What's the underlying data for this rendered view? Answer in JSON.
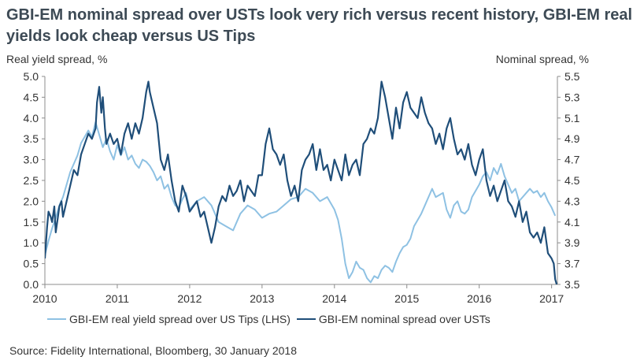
{
  "title": "GBI-EM nominal spread over USTs look very rich versus recent history, GBI-EM real yields look cheap versus US Tips",
  "source": "Source: Fidelity International, Bloomberg, 30 January 2018",
  "chart_data": {
    "type": "line",
    "title": "GBI-EM nominal spread over USTs look very rich versus recent history, GBI-EM real yields look cheap versus US Tips",
    "ylabel_left": "Real yield spread, %",
    "ylabel_right": "Nominal spread, %",
    "x_ticks": [
      "2010",
      "2011",
      "2012",
      "2013",
      "2014",
      "2015",
      "2016",
      "2017"
    ],
    "xlim": [
      2010.0,
      2017.08
    ],
    "ylim_left": [
      0.0,
      5.0
    ],
    "ylim_right": [
      3.5,
      5.5
    ],
    "y_ticks_left": [
      "0.0",
      "0.5",
      "1.0",
      "1.5",
      "2.0",
      "2.5",
      "3.0",
      "3.5",
      "4.0",
      "4.5",
      "5.0"
    ],
    "y_ticks_right": [
      "3.5",
      "3.7",
      "3.9",
      "4.1",
      "4.3",
      "4.5",
      "4.7",
      "4.9",
      "5.1",
      "5.3",
      "5.5"
    ],
    "legend_position": "bottom",
    "grid": false,
    "series": [
      {
        "name": "GBI-EM real yield spread over US Tips (LHS)",
        "axis": "left",
        "color": "#8ec1e3",
        "x": [
          2010.0,
          2010.05,
          2010.1,
          2010.15,
          2010.2,
          2010.25,
          2010.3,
          2010.35,
          2010.4,
          2010.45,
          2010.5,
          2010.55,
          2010.6,
          2010.65,
          2010.7,
          2010.75,
          2010.8,
          2010.85,
          2010.9,
          2010.95,
          2011.0,
          2011.05,
          2011.1,
          2011.15,
          2011.2,
          2011.25,
          2011.3,
          2011.35,
          2011.4,
          2011.45,
          2011.5,
          2011.55,
          2011.6,
          2011.65,
          2011.7,
          2011.75,
          2011.8,
          2011.85,
          2011.9,
          2011.95,
          2012.0,
          2012.1,
          2012.2,
          2012.3,
          2012.4,
          2012.5,
          2012.6,
          2012.7,
          2012.8,
          2012.9,
          2013.0,
          2013.1,
          2013.2,
          2013.3,
          2013.4,
          2013.5,
          2013.6,
          2013.7,
          2013.8,
          2013.9,
          2014.0,
          2014.05,
          2014.1,
          2014.15,
          2014.2,
          2014.25,
          2014.3,
          2014.35,
          2014.4,
          2014.45,
          2014.5,
          2014.55,
          2014.6,
          2014.65,
          2014.7,
          2014.75,
          2014.8,
          2014.85,
          2014.9,
          2014.95,
          2015.0,
          2015.05,
          2015.1,
          2015.15,
          2015.2,
          2015.25,
          2015.3,
          2015.35,
          2015.4,
          2015.45,
          2015.5,
          2015.55,
          2015.6,
          2015.65,
          2015.7,
          2015.75,
          2015.8,
          2015.85,
          2015.9,
          2015.95,
          2016.0,
          2016.05,
          2016.1,
          2016.15,
          2016.2,
          2016.25,
          2016.3,
          2016.35,
          2016.4,
          2016.45,
          2016.5,
          2016.55,
          2016.6,
          2016.65,
          2016.7,
          2016.75,
          2016.8,
          2016.85,
          2016.9,
          2016.95,
          2017.0,
          2017.05
        ],
        "values": [
          0.7,
          1.05,
          1.35,
          1.6,
          1.9,
          2.1,
          2.4,
          2.7,
          2.9,
          3.1,
          3.4,
          3.55,
          3.7,
          3.55,
          3.9,
          3.6,
          3.3,
          3.5,
          3.2,
          3.0,
          3.35,
          3.1,
          3.3,
          3.0,
          3.1,
          2.9,
          2.8,
          3.0,
          2.95,
          2.85,
          2.7,
          2.5,
          2.6,
          2.3,
          2.4,
          2.1,
          1.9,
          1.85,
          2.05,
          2.2,
          1.8,
          2.0,
          2.1,
          1.9,
          1.5,
          1.4,
          1.3,
          1.7,
          1.9,
          1.8,
          1.6,
          1.7,
          1.75,
          1.9,
          2.05,
          2.1,
          2.3,
          2.2,
          2.0,
          2.1,
          1.8,
          1.55,
          1.1,
          0.5,
          0.15,
          0.3,
          0.55,
          0.4,
          0.35,
          0.15,
          0.05,
          0.2,
          0.15,
          0.35,
          0.45,
          0.4,
          0.3,
          0.55,
          0.75,
          0.9,
          0.95,
          1.1,
          1.4,
          1.55,
          1.7,
          1.9,
          2.1,
          2.3,
          2.1,
          2.15,
          2.2,
          1.8,
          1.6,
          1.9,
          2.0,
          1.75,
          1.7,
          1.8,
          2.1,
          2.25,
          2.4,
          2.6,
          2.7,
          2.5,
          2.8,
          2.65,
          2.9,
          2.6,
          2.4,
          2.2,
          2.3,
          2.0,
          2.1,
          2.2,
          2.3,
          2.2,
          2.25,
          2.1,
          2.2,
          2.0,
          1.85,
          1.65
        ]
      },
      {
        "name": "GBI-EM nominal spread over USTs",
        "axis": "right",
        "color": "#1f4e79",
        "x": [
          2010.0,
          2010.03,
          2010.05,
          2010.08,
          2010.1,
          2010.13,
          2010.15,
          2010.18,
          2010.2,
          2010.23,
          2010.25,
          2010.3,
          2010.35,
          2010.4,
          2010.45,
          2010.5,
          2010.55,
          2010.6,
          2010.65,
          2010.7,
          2010.72,
          2010.75,
          2010.78,
          2010.8,
          2010.83,
          2010.85,
          2010.9,
          2010.95,
          2011.0,
          2011.05,
          2011.1,
          2011.15,
          2011.2,
          2011.25,
          2011.3,
          2011.35,
          2011.4,
          2011.43,
          2011.45,
          2011.5,
          2011.55,
          2011.6,
          2011.65,
          2011.7,
          2011.75,
          2011.8,
          2011.85,
          2011.9,
          2011.95,
          2012.0,
          2012.05,
          2012.1,
          2012.15,
          2012.2,
          2012.25,
          2012.3,
          2012.35,
          2012.4,
          2012.45,
          2012.5,
          2012.55,
          2012.6,
          2012.65,
          2012.7,
          2012.75,
          2012.8,
          2012.85,
          2012.9,
          2012.95,
          2013.0,
          2013.05,
          2013.1,
          2013.15,
          2013.2,
          2013.25,
          2013.3,
          2013.35,
          2013.4,
          2013.45,
          2013.5,
          2013.55,
          2013.6,
          2013.65,
          2013.7,
          2013.75,
          2013.8,
          2013.85,
          2013.9,
          2013.95,
          2014.0,
          2014.05,
          2014.1,
          2014.15,
          2014.2,
          2014.25,
          2014.3,
          2014.35,
          2014.4,
          2014.45,
          2014.5,
          2014.55,
          2014.6,
          2014.65,
          2014.7,
          2014.75,
          2014.8,
          2014.85,
          2014.9,
          2014.95,
          2015.0,
          2015.05,
          2015.1,
          2015.15,
          2015.2,
          2015.25,
          2015.3,
          2015.35,
          2015.4,
          2015.45,
          2015.5,
          2015.55,
          2015.6,
          2015.65,
          2015.7,
          2015.75,
          2015.8,
          2015.85,
          2015.9,
          2015.95,
          2016.0,
          2016.05,
          2016.1,
          2016.15,
          2016.2,
          2016.25,
          2016.3,
          2016.35,
          2016.4,
          2016.45,
          2016.5,
          2016.55,
          2016.6,
          2016.65,
          2016.7,
          2016.75,
          2016.8,
          2016.85,
          2016.9,
          2016.95,
          2017.0,
          2017.03,
          2017.05,
          2017.07
        ],
        "values": [
          3.75,
          4.05,
          4.2,
          4.15,
          4.1,
          4.25,
          4.0,
          4.15,
          4.25,
          4.3,
          4.15,
          4.3,
          4.45,
          4.6,
          4.55,
          4.75,
          4.85,
          4.95,
          4.9,
          5.0,
          5.25,
          5.4,
          5.15,
          5.3,
          5.0,
          4.85,
          4.95,
          4.85,
          4.9,
          4.75,
          4.95,
          5.05,
          4.9,
          5.05,
          4.95,
          5.1,
          5.35,
          5.45,
          5.35,
          5.2,
          5.05,
          4.7,
          4.6,
          4.75,
          4.5,
          4.3,
          4.2,
          4.45,
          4.35,
          4.2,
          4.25,
          4.3,
          4.15,
          4.2,
          4.05,
          3.9,
          4.05,
          4.25,
          4.35,
          4.3,
          4.45,
          4.35,
          4.4,
          4.5,
          4.3,
          4.45,
          4.4,
          4.35,
          4.55,
          4.55,
          4.85,
          5.0,
          4.8,
          4.75,
          4.65,
          4.75,
          4.5,
          4.35,
          4.45,
          4.3,
          4.6,
          4.7,
          4.75,
          4.85,
          4.6,
          4.8,
          4.6,
          4.65,
          4.5,
          4.7,
          4.6,
          4.5,
          4.75,
          4.55,
          4.65,
          4.7,
          4.55,
          4.85,
          4.9,
          5.0,
          4.95,
          5.1,
          5.45,
          5.3,
          5.1,
          4.9,
          5.2,
          5.0,
          5.25,
          5.35,
          5.2,
          5.15,
          5.1,
          5.3,
          5.15,
          5.05,
          5.0,
          4.85,
          4.95,
          4.8,
          5.0,
          5.1,
          4.9,
          4.75,
          4.8,
          4.7,
          4.85,
          4.65,
          4.55,
          4.7,
          4.8,
          4.5,
          4.35,
          4.45,
          4.3,
          4.4,
          4.5,
          4.3,
          4.25,
          4.15,
          4.3,
          4.1,
          4.2,
          4.0,
          3.95,
          4.0,
          3.9,
          4.05,
          3.8,
          3.75,
          3.7,
          3.55,
          3.5
        ]
      }
    ]
  },
  "legend_sep": "—"
}
